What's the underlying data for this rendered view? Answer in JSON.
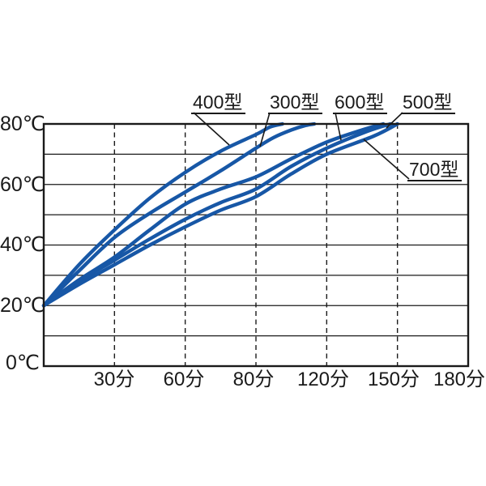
{
  "figure": {
    "background": "#ffffff",
    "x_axis_unit": "分",
    "y_axis_unit": "℃"
  },
  "chart_data": {
    "type": "line",
    "title": "",
    "xlabel": "",
    "ylabel": "",
    "x_axis_values": [
      0,
      30,
      60,
      80,
      120,
      150,
      180
    ],
    "x_tick_labels": [
      "30分",
      "60分",
      "80分",
      "120分",
      "150分",
      "180分"
    ],
    "y_tick_labels": [
      "80℃",
      "60℃",
      "40℃",
      "20℃",
      "0℃"
    ],
    "y_tick_values": [
      80,
      60,
      40,
      20,
      0
    ],
    "ylim": [
      0,
      80
    ],
    "ygrid_step": 10,
    "grid": {
      "horizontal": "solid",
      "vertical": "dashed"
    },
    "legend_position": "inline-annotations",
    "line_color": "#1757a6",
    "axis_color": "#1a1a1a",
    "series": [
      {
        "name": "400型",
        "points": [
          [
            0,
            20
          ],
          [
            15,
            33.5
          ],
          [
            30,
            45
          ],
          [
            45,
            55.5
          ],
          [
            60,
            64
          ],
          [
            70,
            71
          ],
          [
            80,
            76.5
          ],
          [
            88,
            79
          ],
          [
            95,
            80
          ]
        ]
      },
      {
        "name": "300型",
        "points": [
          [
            0,
            20
          ],
          [
            15,
            31.5
          ],
          [
            30,
            42.5
          ],
          [
            45,
            50.5
          ],
          [
            60,
            57.5
          ],
          [
            70,
            64.5
          ],
          [
            80,
            72
          ],
          [
            90,
            75.5
          ],
          [
            100,
            78
          ],
          [
            108,
            79.5
          ],
          [
            113,
            80
          ]
        ]
      },
      {
        "name": "600型",
        "points": [
          [
            0,
            20
          ],
          [
            15,
            28.5
          ],
          [
            30,
            36
          ],
          [
            45,
            45
          ],
          [
            60,
            53.5
          ],
          [
            70,
            58.5
          ],
          [
            80,
            62.5
          ],
          [
            100,
            68.5
          ],
          [
            120,
            74
          ],
          [
            135,
            78
          ],
          [
            144,
            80
          ]
        ]
      },
      {
        "name": "500型",
        "points": [
          [
            0,
            20
          ],
          [
            15,
            28
          ],
          [
            30,
            35
          ],
          [
            45,
            42
          ],
          [
            60,
            48.5
          ],
          [
            70,
            54
          ],
          [
            80,
            58.5
          ],
          [
            100,
            66
          ],
          [
            120,
            72
          ],
          [
            137,
            77.5
          ],
          [
            147,
            80
          ]
        ]
      },
      {
        "name": "700型",
        "points": [
          [
            0,
            20
          ],
          [
            15,
            27
          ],
          [
            30,
            33.5
          ],
          [
            45,
            40
          ],
          [
            60,
            46
          ],
          [
            70,
            51.5
          ],
          [
            80,
            56
          ],
          [
            100,
            63.5
          ],
          [
            120,
            70
          ],
          [
            140,
            76
          ],
          [
            150,
            80
          ]
        ]
      }
    ],
    "annotations": [
      {
        "label": "400型",
        "leader": [
          [
            239,
            139
          ],
          [
            283,
            179
          ]
        ]
      },
      {
        "label": "300型",
        "leader": [
          [
            333,
            139
          ],
          [
            321,
            181
          ]
        ]
      },
      {
        "label": "600型",
        "leader": [
          [
            414,
            139
          ],
          [
            421,
            173
          ]
        ]
      },
      {
        "label": "500型",
        "leader": [
          [
            497,
            139
          ],
          [
            477,
            158
          ]
        ]
      },
      {
        "label": "700型",
        "leader": [
          [
            505,
            221
          ],
          [
            449,
            172
          ]
        ]
      }
    ]
  }
}
